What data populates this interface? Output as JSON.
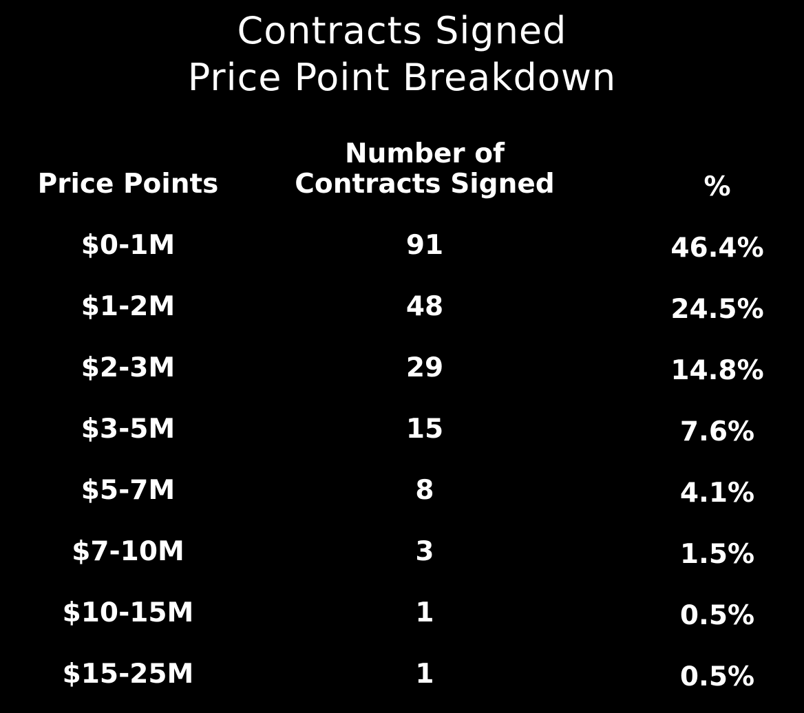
{
  "title": [
    "Contracts Signed",
    "Price Point Breakdown"
  ],
  "table": {
    "headers": [
      "Price Points",
      "Number of\nContracts Signed",
      "%"
    ],
    "rows": [
      [
        "$0-1M",
        "91",
        "46.4%"
      ],
      [
        "$1-2M",
        "48",
        "24.5%"
      ],
      [
        "$2-3M",
        "29",
        "14.8%"
      ],
      [
        "$3-5M",
        "15",
        "7.6%"
      ],
      [
        "$5-7M",
        "8",
        "4.1%"
      ],
      [
        "$7-10M",
        "3",
        "1.5%"
      ],
      [
        "$10-15M",
        "1",
        "0.5%"
      ],
      [
        "$15-25M",
        "1",
        "0.5%"
      ]
    ]
  }
}
